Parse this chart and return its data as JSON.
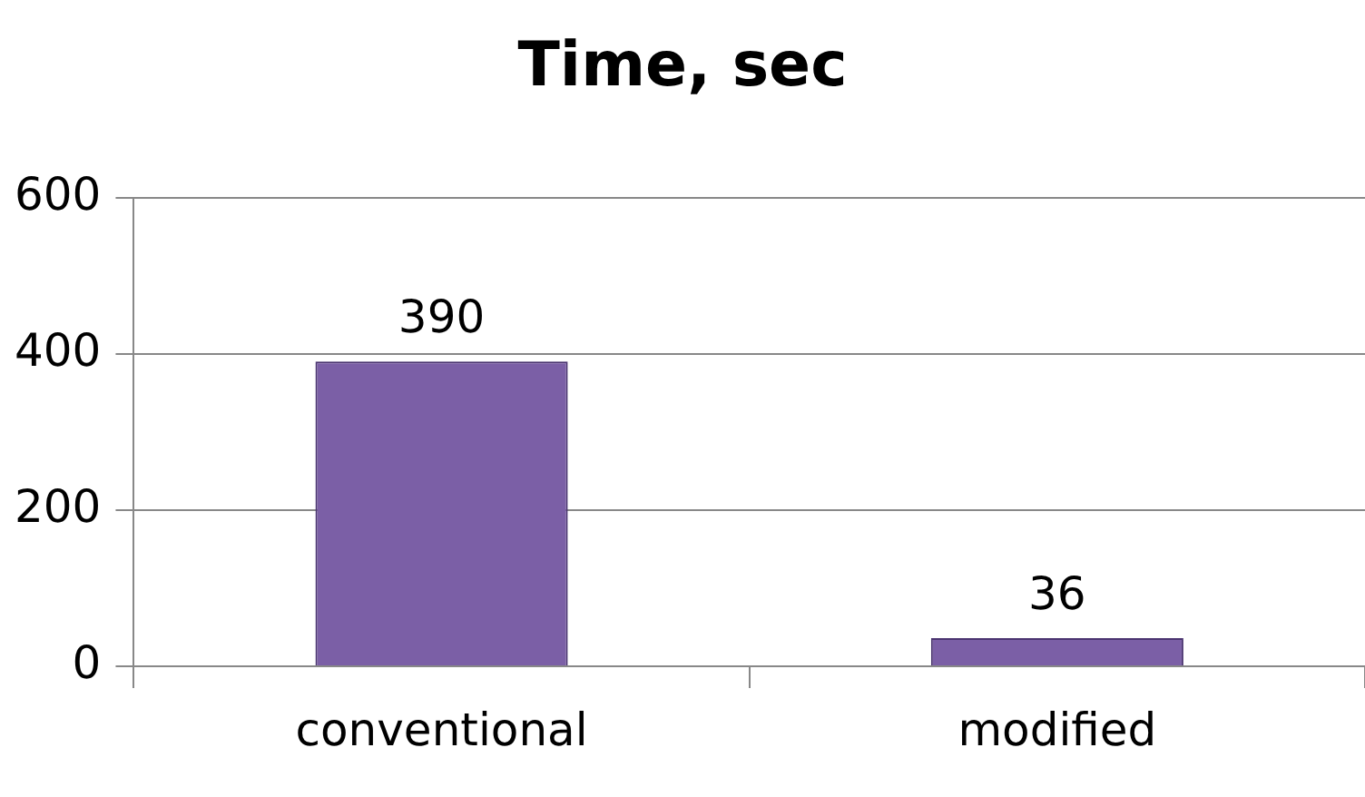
{
  "chart_data": {
    "type": "bar",
    "title": "Time, sec",
    "categories": [
      "conventional",
      "modified"
    ],
    "values": [
      390,
      36
    ],
    "color": "#7b5fa6",
    "ylim": [
      0,
      600
    ],
    "yticks": [
      0,
      200,
      400,
      600
    ],
    "grid": "y",
    "data_labels": true,
    "legend": false
  }
}
